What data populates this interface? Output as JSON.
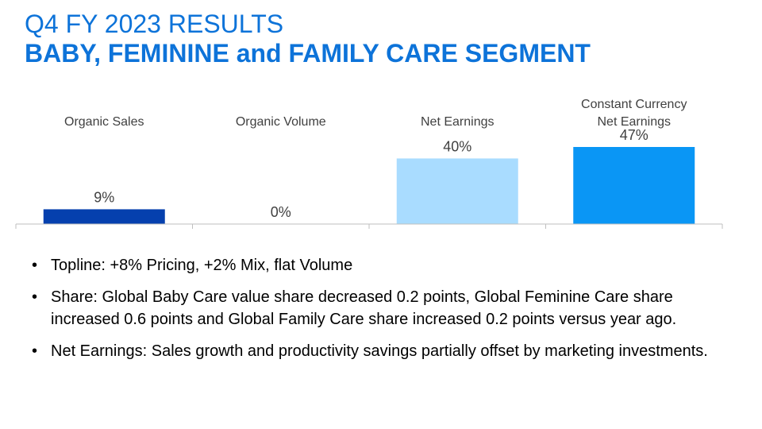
{
  "header": {
    "title": "Q4 FY 2023 RESULTS",
    "subtitle": "BABY, FEMININE and FAMILY CARE SEGMENT"
  },
  "chart_data": {
    "type": "bar",
    "categories": [
      [
        "Organic Sales"
      ],
      [
        "Organic Volume"
      ],
      [
        "Net Earnings"
      ],
      [
        "Constant Currency",
        "Net Earnings"
      ]
    ],
    "values": [
      9,
      0,
      40,
      47
    ],
    "value_labels": [
      "9%",
      "0%",
      "40%",
      "47%"
    ],
    "colors": [
      "#0540AE",
      "#0540AE",
      "#A9DCFF",
      "#0A96F5"
    ],
    "ylim": [
      0,
      47
    ],
    "grid": false,
    "legend": "none"
  },
  "bullets": [
    "Topline: +8% Pricing, +2% Mix, flat Volume",
    "Share: Global Baby Care value share decreased 0.2 points, Global Feminine Care share increased 0.6 points and Global Family Care share increased 0.2 points versus year ago.",
    "Net Earnings: Sales growth and productivity savings partially offset by marketing investments."
  ]
}
